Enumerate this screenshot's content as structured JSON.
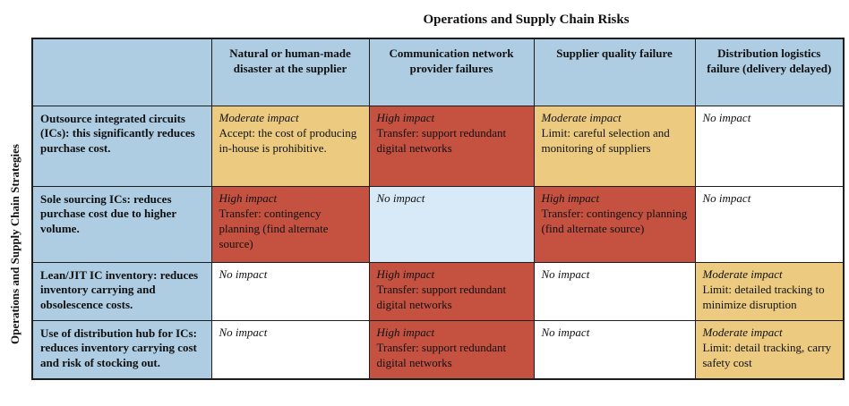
{
  "title": "Operations and Supply Chain Risks",
  "side_label": "Operations and Supply Chain Strategies",
  "colors": {
    "header": "#aecde3",
    "moderate": "#eccb81",
    "high": "#c55241",
    "none": "#ffffff",
    "none_alt": "#d8eaf7"
  },
  "columns": [
    "Natural or human-made disaster at the supplier",
    "Communication network provider failures",
    "Supplier quality failure",
    "Distribution logistics failure (delivery delayed)"
  ],
  "rows": [
    {
      "strategy": "Outsource integrated circuits (ICs): this significantly reduces purchase cost.",
      "cells": [
        {
          "type": "moderate",
          "impact": "Moderate impact",
          "detail": "Accept: the cost of producing in-house is prohibitive."
        },
        {
          "type": "high",
          "impact": "High impact",
          "detail": "Transfer: support redundant digital networks"
        },
        {
          "type": "moderate",
          "impact": "Moderate impact",
          "detail": "Limit: careful selection and monitoring of suppliers"
        },
        {
          "type": "none",
          "impact": "No impact",
          "detail": ""
        }
      ]
    },
    {
      "strategy": "Sole sourcing ICs: reduces purchase cost due to higher volume.",
      "cells": [
        {
          "type": "high",
          "impact": "High impact",
          "detail": "Transfer: contingency planning (find alternate source)"
        },
        {
          "type": "none_alt",
          "impact": "No impact",
          "detail": ""
        },
        {
          "type": "high",
          "impact": "High impact",
          "detail": "Transfer: contingency planning (find alternate source)"
        },
        {
          "type": "none",
          "impact": "No impact",
          "detail": ""
        }
      ]
    },
    {
      "strategy": "Lean/JIT IC inventory: reduces inventory carrying and obsolescence costs.",
      "cells": [
        {
          "type": "none",
          "impact": "No impact",
          "detail": ""
        },
        {
          "type": "high",
          "impact": "High impact",
          "detail": "Transfer: support redundant digital networks"
        },
        {
          "type": "none",
          "impact": "No impact",
          "detail": ""
        },
        {
          "type": "moderate",
          "impact": "Moderate impact",
          "detail": "Limit: detailed tracking to minimize disruption"
        }
      ]
    },
    {
      "strategy": "Use of distribution hub for ICs: reduces inventory carrying cost and risk of stocking out.",
      "cells": [
        {
          "type": "none",
          "impact": "No impact",
          "detail": ""
        },
        {
          "type": "high",
          "impact": "High impact",
          "detail": "Transfer: support redundant digital networks"
        },
        {
          "type": "none",
          "impact": "No impact",
          "detail": ""
        },
        {
          "type": "moderate",
          "impact": "Moderate impact",
          "detail": "Limit: detail tracking, carry safety cost"
        }
      ]
    }
  ]
}
